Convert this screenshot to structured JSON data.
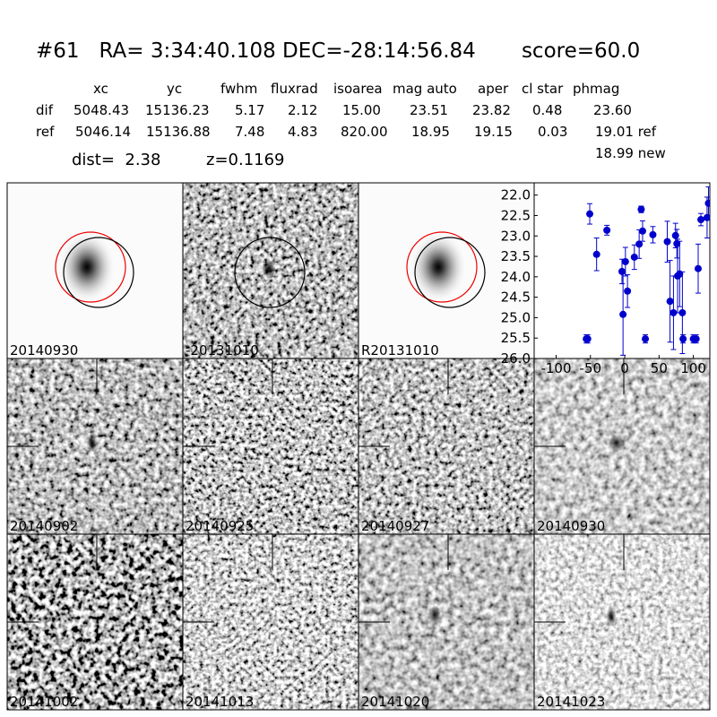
{
  "header": {
    "title": "#61   RA= 3:34:40.108 DEC=-28:14:56.84       score=60.0"
  },
  "table": {
    "columns": [
      "xc",
      "yc",
      "fwhm",
      "fluxrad",
      "isoarea",
      "mag auto",
      "aper",
      "cl star",
      "phmag"
    ],
    "rows": [
      [
        "dif",
        "5048.43",
        "15136.23",
        "5.17",
        "2.12",
        "15.00",
        "23.51",
        "23.82",
        "0.48",
        "23.60"
      ],
      [
        "ref",
        "5046.14",
        "15136.88",
        "7.48",
        "4.83",
        "820.00",
        "18.95",
        "19.15",
        "0.03",
        "19.01 ref"
      ]
    ],
    "extra": "18.99 new"
  },
  "summary": {
    "dist": "dist=  2.38",
    "z": "z=0.1169"
  },
  "panels": [
    {
      "label": "20140930"
    },
    {
      "label": "-20131010"
    },
    {
      "label": "R20131010"
    },
    {
      "label": "20140902"
    },
    {
      "label": "20140925"
    },
    {
      "label": "20140927"
    },
    {
      "label": "20140930",
      "label_color": "#ff0000"
    },
    {
      "label": "20141002"
    },
    {
      "label": "20141013"
    },
    {
      "label": "20141020"
    },
    {
      "label": "20141023"
    }
  ],
  "chart_data": {
    "type": "errorbar",
    "color": "#0000cc",
    "x": [
      -56,
      -54,
      -51,
      -41,
      -26,
      -4,
      -2.5,
      1,
      4,
      14,
      21,
      24,
      26,
      30,
      41,
      62,
      66,
      71,
      74,
      76,
      77,
      80,
      84,
      85,
      100,
      104,
      107,
      111,
      120,
      122
    ],
    "values": [
      25.52,
      25.52,
      22.46,
      23.45,
      22.86,
      23.87,
      24.92,
      23.63,
      24.35,
      23.52,
      23.2,
      22.35,
      22.88,
      25.52,
      22.97,
      23.14,
      24.6,
      24.88,
      22.99,
      23.19,
      23.98,
      23.93,
      24.88,
      25.52,
      25.52,
      25.52,
      23.8,
      22.6,
      22.55,
      22.2
    ],
    "errors": [
      0.1,
      0.1,
      0.25,
      0.4,
      0.12,
      0.3,
      1.0,
      0.35,
      0.4,
      0.3,
      0.35,
      0.08,
      0.25,
      0.1,
      0.2,
      0.5,
      1.0,
      0.9,
      0.3,
      0.35,
      0.9,
      0.8,
      1.0,
      0.1,
      0.1,
      0.1,
      0.6,
      0.15,
      0.5,
      0.4
    ],
    "xlim": [
      -132,
      124
    ],
    "ylim": [
      21.7,
      26.0
    ],
    "y_inverted": true,
    "xticks": [
      -100,
      -50,
      0,
      50,
      100
    ],
    "yticks": [
      {
        "value": 22,
        "label": "22.0"
      },
      {
        "value": 22.5,
        "label": "22.5"
      },
      {
        "value": 23,
        "label": "23.0"
      },
      {
        "value": 23.5,
        "label": "23.5"
      },
      {
        "value": 24,
        "label": "24.0"
      },
      {
        "value": 24.5,
        "label": "24.5"
      },
      {
        "value": 25,
        "label": "25.0"
      },
      {
        "value": 25.5,
        "label": "25.5"
      },
      {
        "value": 26,
        "label": "26.0"
      }
    ]
  }
}
